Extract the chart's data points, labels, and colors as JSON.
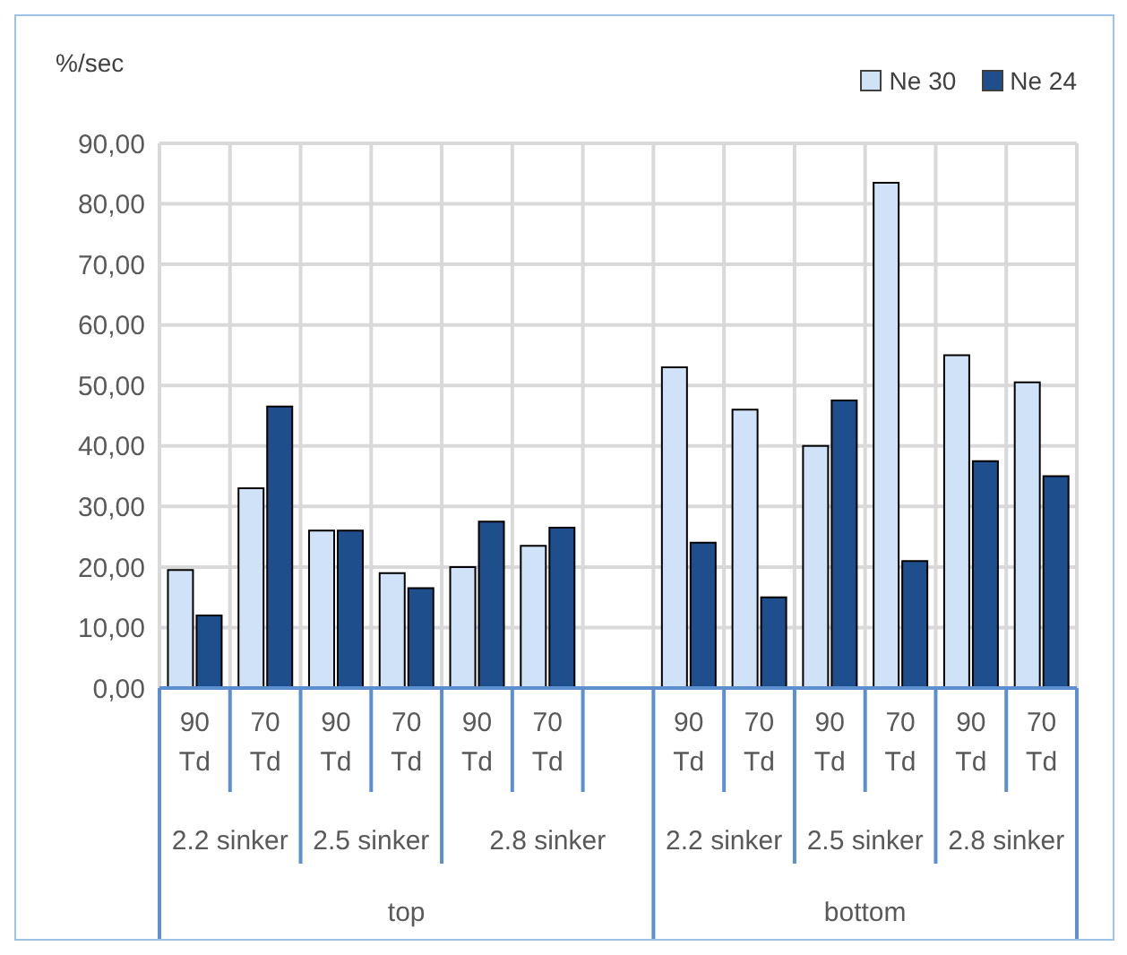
{
  "chart_data": {
    "type": "bar",
    "ylabel": "%/sec",
    "categories": [
      "90 Td",
      "70 Td",
      "90 Td",
      "70 Td",
      "90 Td",
      "70 Td",
      null,
      "90 Td",
      "70 Td",
      "90 Td",
      "70 Td",
      "90 Td",
      "70 Td"
    ],
    "series": [
      {
        "name": "Ne 30",
        "color": "#cfe2f8",
        "values": [
          19.5,
          33,
          26,
          19,
          20,
          23.5,
          null,
          53,
          46,
          40,
          83.5,
          55,
          50.5
        ]
      },
      {
        "name": "Ne 24",
        "color": "#1f4e8c",
        "values": [
          12,
          46.5,
          26,
          16.5,
          27.5,
          26.5,
          null,
          24,
          15,
          47.5,
          21,
          37.5,
          35
        ]
      }
    ],
    "ylim": [
      0,
      90
    ],
    "yticks": [
      {
        "value": 0,
        "label": "0,00"
      },
      {
        "value": 10,
        "label": "10,00"
      },
      {
        "value": 20,
        "label": "20,00"
      },
      {
        "value": 30,
        "label": "30,00"
      },
      {
        "value": 40,
        "label": "40,00"
      },
      {
        "value": 50,
        "label": "50,00"
      },
      {
        "value": 60,
        "label": "60,00"
      },
      {
        "value": 70,
        "label": "70,00"
      },
      {
        "value": 80,
        "label": "80,00"
      },
      {
        "value": 90,
        "label": "90,00"
      }
    ],
    "annotations": [
      "2.2 sinker",
      "2.5 sinker",
      "2.8 sinker",
      "2.2 sinker",
      "2.5 sinker",
      "2.8 sinker",
      "top",
      "bottom"
    ],
    "grid": true,
    "legend": "top right"
  }
}
